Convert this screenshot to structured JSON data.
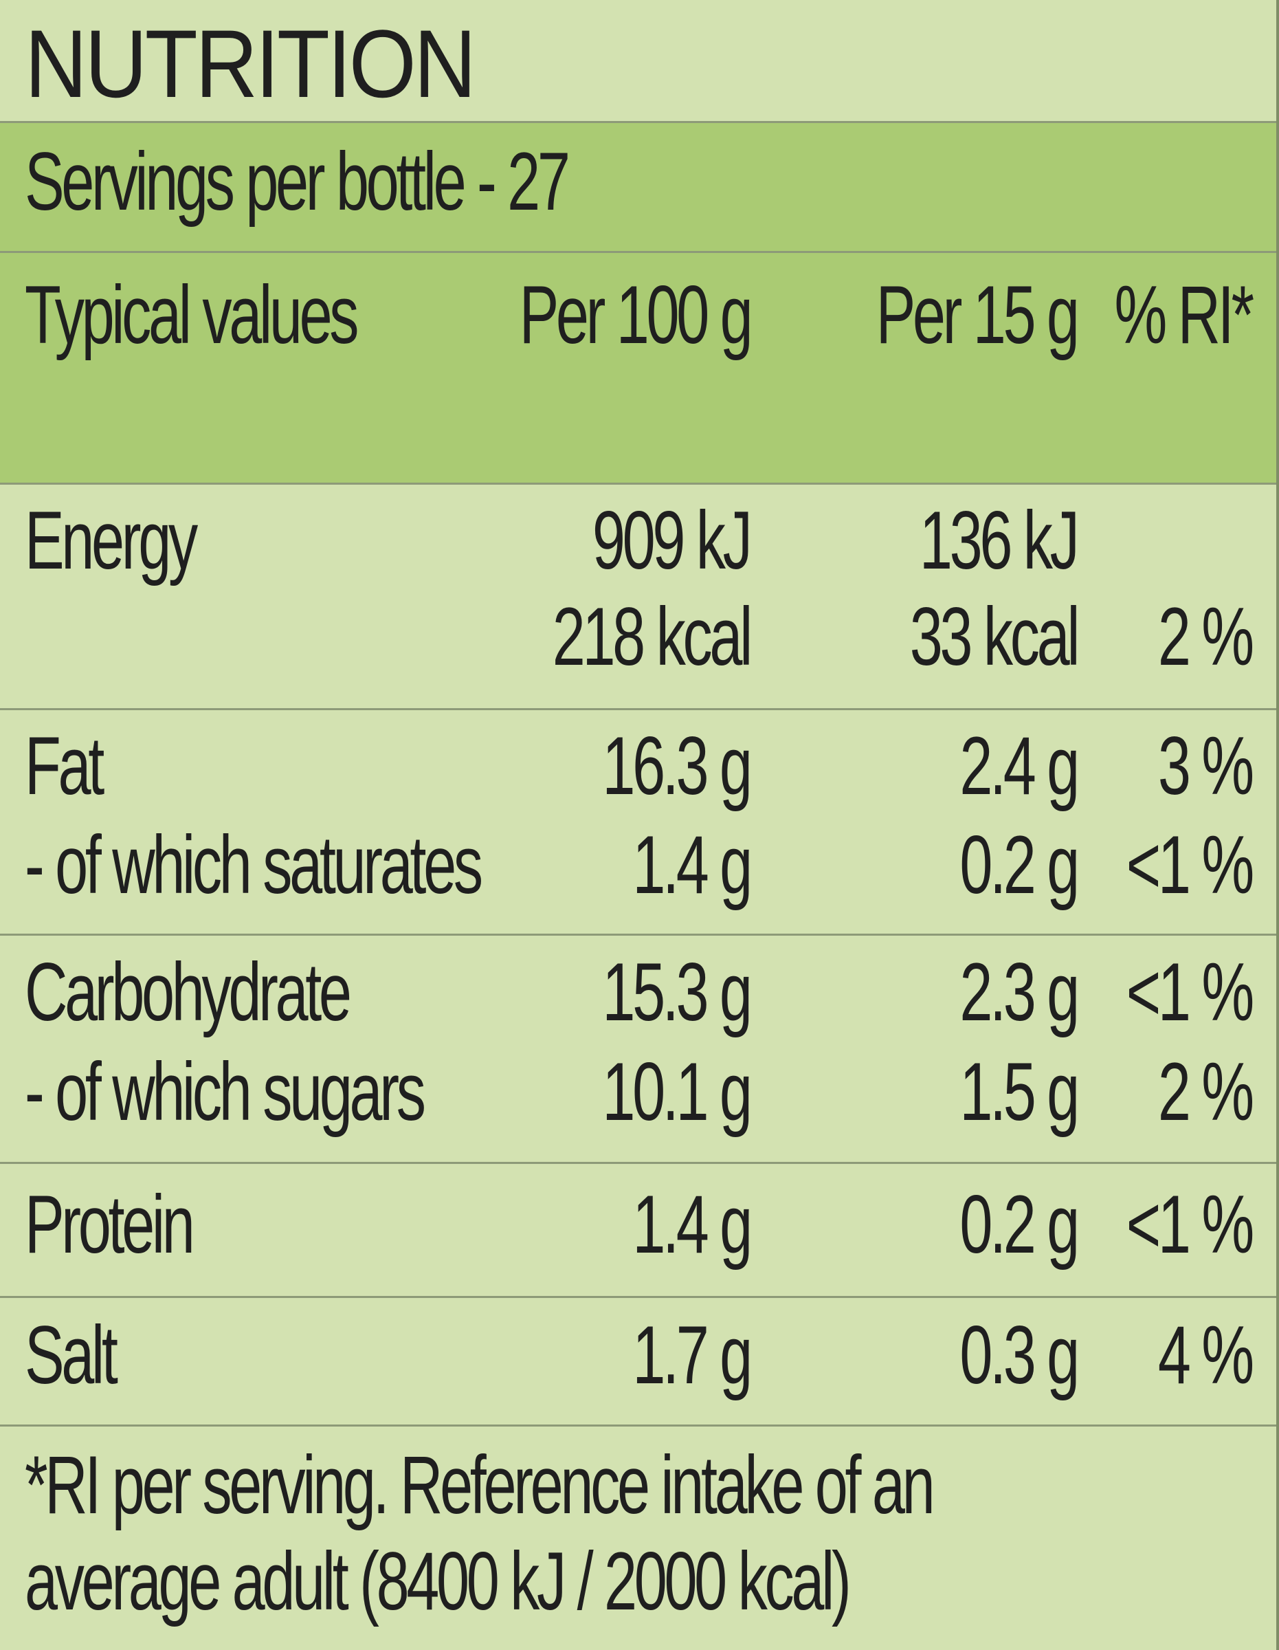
{
  "title": "NUTRITION",
  "servings": "Servings per bottle - 27",
  "header": {
    "col1": "Typical values",
    "col2": "Per 100 g",
    "col3": "Per 15 g",
    "col4": "% RI*"
  },
  "rows": {
    "energy": {
      "label": "Energy",
      "per100_kj": "909 kJ",
      "per15_kj": "136 kJ",
      "per100_kcal": "218 kcal",
      "per15_kcal": "33 kcal",
      "ri": "2 %"
    },
    "fat": {
      "label": "Fat",
      "per100": "16.3 g",
      "per15": "2.4 g",
      "ri": "3 %"
    },
    "saturates": {
      "label": "- of which saturates",
      "per100": "1.4 g",
      "per15": "0.2 g",
      "ri": "<1 %"
    },
    "carbohydrate": {
      "label": "Carbohydrate",
      "per100": "15.3 g",
      "per15": "2.3 g",
      "ri": "<1 %"
    },
    "sugars": {
      "label": "- of which sugars",
      "per100": "10.1 g",
      "per15": "1.5 g",
      "ri": "2 %"
    },
    "protein": {
      "label": "Protein",
      "per100": "1.4 g",
      "per15": "0.2 g",
      "ri": "<1 %"
    },
    "salt": {
      "label": "Salt",
      "per100": "1.7 g",
      "per15": "0.3 g",
      "ri": "4 %"
    }
  },
  "footnote": {
    "line1": "*RI per serving. Reference intake of an",
    "line2": "average adult (8400 kJ / 2000 kcal)"
  }
}
